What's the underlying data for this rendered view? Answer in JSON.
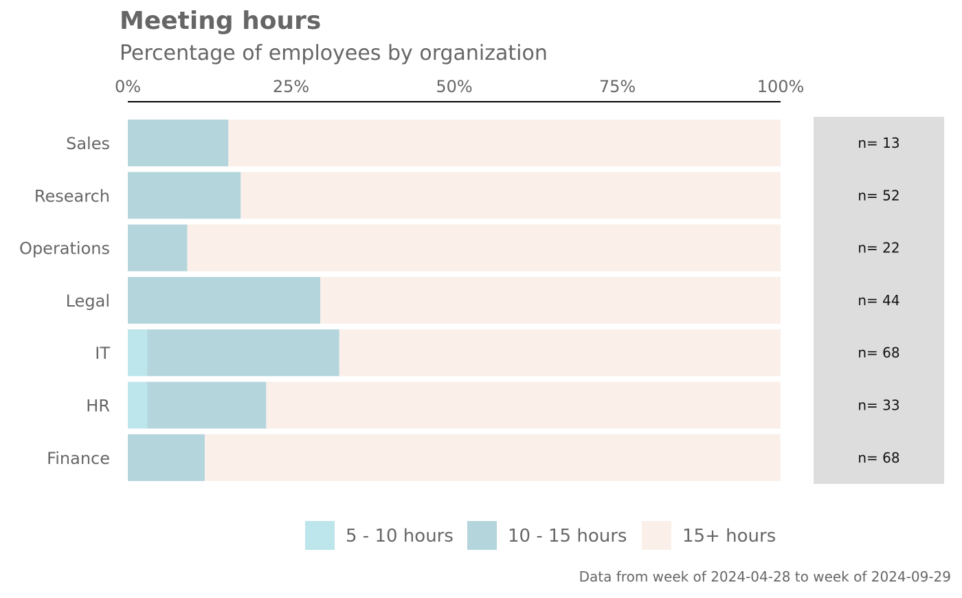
{
  "chart_data": {
    "type": "bar",
    "orientation": "horizontal",
    "stacked": true,
    "title": "Meeting hours",
    "subtitle": "Percentage of employees by organization",
    "caption": "Data from week of 2024-04-28 to week of 2024-09-29",
    "xlim": [
      0,
      100
    ],
    "x_ticks": [
      "0%",
      "25%",
      "50%",
      "75%",
      "100%"
    ],
    "x_tick_values": [
      0,
      25,
      50,
      75,
      100
    ],
    "x_axis_position": "top",
    "categories": [
      "Sales",
      "Research",
      "Operations",
      "Legal",
      "IT",
      "HR",
      "Finance"
    ],
    "series": [
      {
        "name": "5 - 10 hours",
        "color": "#bde5ec",
        "values": [
          0,
          0,
          0,
          0,
          3,
          3,
          0
        ]
      },
      {
        "name": "10 - 15 hours",
        "color": "#b4d5dc",
        "values": [
          15.4,
          17.3,
          9.1,
          29.5,
          29.4,
          18.2,
          11.8
        ]
      },
      {
        "name": "15+ hours",
        "color": "#fbefea",
        "values": [
          84.6,
          82.7,
          90.9,
          70.5,
          67.6,
          78.8,
          88.2
        ]
      }
    ],
    "n_labels": [
      "n= 13",
      "n= 52",
      "n= 22",
      "n= 44",
      "n= 68",
      "n= 33",
      "n= 68"
    ],
    "n_panel_color": "#dddddd",
    "legend": {
      "placement": "bottom",
      "entries": [
        "5 - 10 hours",
        "10 - 15 hours",
        "15+ hours"
      ]
    },
    "grid": false
  }
}
